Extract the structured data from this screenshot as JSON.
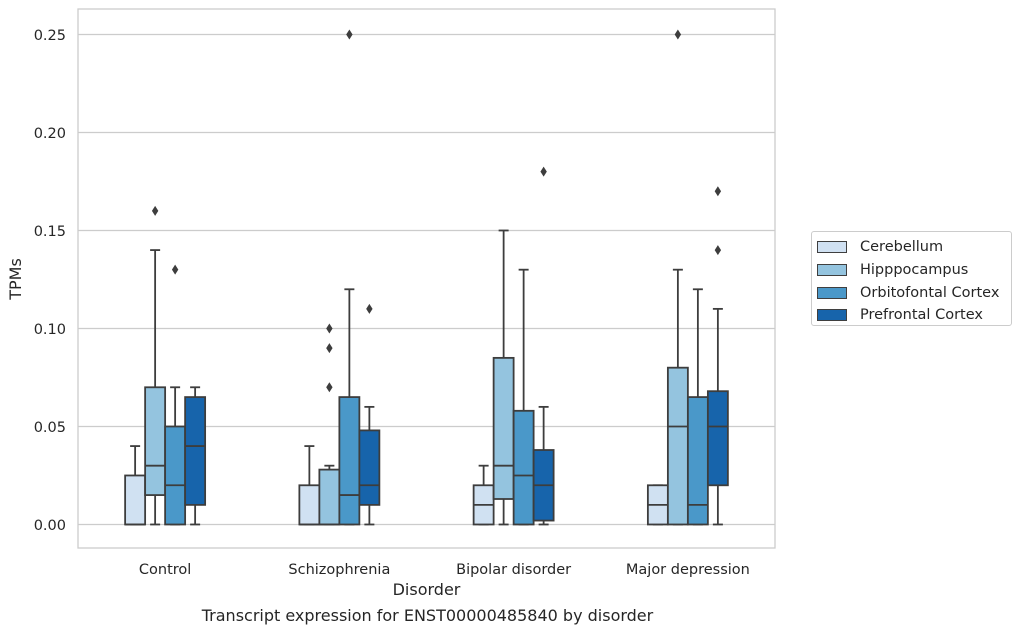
{
  "chart_data": {
    "type": "box",
    "xlabel": "Disorder",
    "ylabel": "TPMs",
    "ylim": [
      -0.012,
      0.263
    ],
    "yticks": [
      0.0,
      0.05,
      0.1,
      0.15,
      0.2,
      0.25
    ],
    "ytick_labels": [
      "0.00",
      "0.05",
      "0.10",
      "0.15",
      "0.20",
      "0.25"
    ],
    "grid": true,
    "legend_position": "right",
    "categories": [
      "Control",
      "Schizophrenia",
      "Bipolar disorder",
      "Major depression"
    ],
    "series": [
      {
        "name": "Cerebellum",
        "color": "#d0e1f2",
        "boxes": [
          {
            "whislo": 0.0,
            "q1": 0.0,
            "med": 0.0,
            "q3": 0.025,
            "whishi": 0.04,
            "fliers": []
          },
          {
            "whislo": 0.0,
            "q1": 0.0,
            "med": 0.0,
            "q3": 0.02,
            "whishi": 0.04,
            "fliers": []
          },
          {
            "whislo": 0.0,
            "q1": 0.0,
            "med": 0.01,
            "q3": 0.02,
            "whishi": 0.03,
            "fliers": []
          },
          {
            "whislo": 0.0,
            "q1": 0.0,
            "med": 0.01,
            "q3": 0.02,
            "whishi": 0.02,
            "fliers": []
          }
        ]
      },
      {
        "name": "Hipppocampus",
        "color": "#94c4df",
        "boxes": [
          {
            "whislo": 0.0,
            "q1": 0.015,
            "med": 0.03,
            "q3": 0.07,
            "whishi": 0.14,
            "fliers": [
              0.16
            ]
          },
          {
            "whislo": 0.0,
            "q1": 0.0,
            "med": 0.0,
            "q3": 0.028,
            "whishi": 0.03,
            "fliers": [
              0.07,
              0.09,
              0.1
            ]
          },
          {
            "whislo": 0.0,
            "q1": 0.013,
            "med": 0.03,
            "q3": 0.085,
            "whishi": 0.15,
            "fliers": []
          },
          {
            "whislo": 0.0,
            "q1": 0.0,
            "med": 0.05,
            "q3": 0.08,
            "whishi": 0.13,
            "fliers": [
              0.25
            ]
          }
        ]
      },
      {
        "name": "Orbitofontal Cortex",
        "color": "#4a98c9",
        "boxes": [
          {
            "whislo": 0.0,
            "q1": 0.0,
            "med": 0.02,
            "q3": 0.05,
            "whishi": 0.07,
            "fliers": [
              0.13
            ]
          },
          {
            "whislo": 0.0,
            "q1": 0.0,
            "med": 0.015,
            "q3": 0.065,
            "whishi": 0.12,
            "fliers": [
              0.25
            ]
          },
          {
            "whislo": 0.0,
            "q1": 0.0,
            "med": 0.025,
            "q3": 0.058,
            "whishi": 0.13,
            "fliers": []
          },
          {
            "whislo": 0.0,
            "q1": 0.0,
            "med": 0.01,
            "q3": 0.065,
            "whishi": 0.12,
            "fliers": []
          }
        ]
      },
      {
        "name": "Prefrontal Cortex",
        "color": "#1764ab",
        "boxes": [
          {
            "whislo": 0.0,
            "q1": 0.01,
            "med": 0.04,
            "q3": 0.065,
            "whishi": 0.07,
            "fliers": []
          },
          {
            "whislo": 0.0,
            "q1": 0.01,
            "med": 0.02,
            "q3": 0.048,
            "whishi": 0.06,
            "fliers": [
              0.11
            ]
          },
          {
            "whislo": 0.0,
            "q1": 0.002,
            "med": 0.02,
            "q3": 0.038,
            "whishi": 0.06,
            "fliers": [
              0.18
            ]
          },
          {
            "whislo": 0.0,
            "q1": 0.02,
            "med": 0.05,
            "q3": 0.068,
            "whishi": 0.11,
            "fliers": [
              0.14,
              0.17
            ]
          }
        ]
      }
    ]
  },
  "caption": "Transcript expression for ENST00000485840 by disorder"
}
